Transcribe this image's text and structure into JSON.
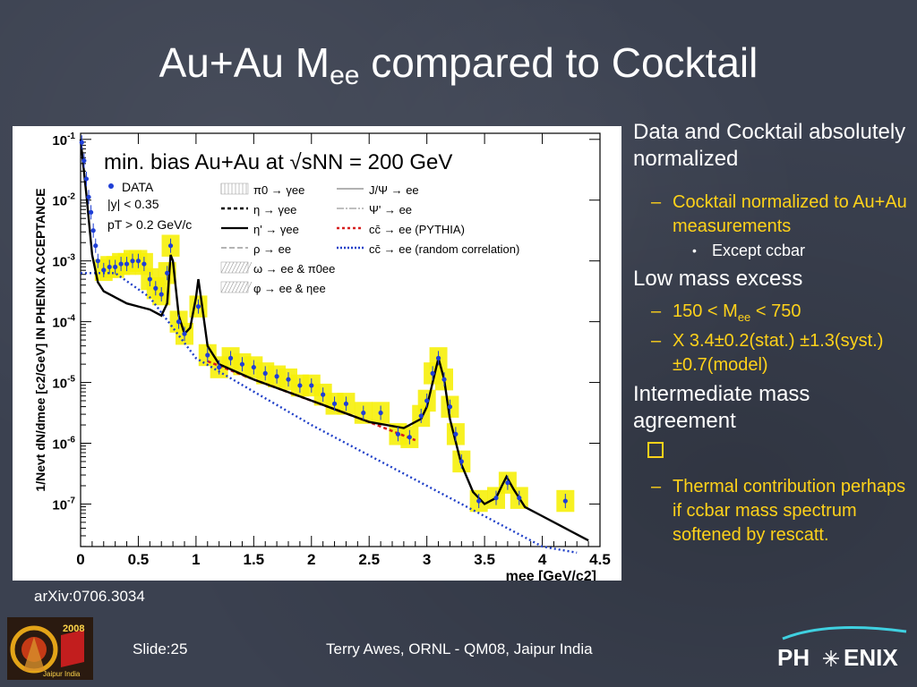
{
  "slide": {
    "title_main": "Au+Au M",
    "title_sub": "ee",
    "title_rest": " compared to Cocktail",
    "arxiv": "arXiv:0706.3034",
    "slide_label": "Slide:25",
    "author": "Terry Awes, ORNL - QM08, Jaipur India",
    "logo_right_text_a": "PH",
    "logo_right_text_b": "ENIX",
    "logo_left_year": "2008",
    "logo_left_text": "Jaipur India"
  },
  "notes": {
    "n1": "Data and Cocktail absolutely normalized",
    "n1a": "Cocktail normalized to Au+Au measurements",
    "n1a1": "Except ccbar",
    "n2": "Low mass excess",
    "n2a_pre": "150 < M",
    "n2a_sub": "ee",
    "n2a_post": " < 750",
    "n2b": "X 3.4±0.2(stat.) ±1.3(syst.)±0.7(model)",
    "n3": "Intermediate mass agreement",
    "n3b": "Thermal contribution perhaps if ccbar mass spectrum softened by rescatt."
  },
  "chart_data": {
    "type": "line",
    "title": "min. bias Au+Au at √sNN = 200 GeV",
    "xlabel": "mee [GeV/c2]",
    "ylabel": "1/Nevt dN/dmee [c2/GeV] IN PHENIX ACCEPTANCE",
    "xlim": [
      0,
      4.5
    ],
    "ylim_log10": [
      -7.7,
      -0.9
    ],
    "yscale": "log",
    "x_ticks": [
      "0",
      "0.5",
      "1",
      "1.5",
      "2",
      "2.5",
      "3",
      "3.5",
      "4",
      "4.5"
    ],
    "y_ticks": [
      {
        "base": "10",
        "exp": "-1",
        "log10": -1
      },
      {
        "base": "10",
        "exp": "-2",
        "log10": -2
      },
      {
        "base": "10",
        "exp": "-3",
        "log10": -3
      },
      {
        "base": "10",
        "exp": "-4",
        "log10": -4
      },
      {
        "base": "10",
        "exp": "-5",
        "log10": -5
      },
      {
        "base": "10",
        "exp": "-6",
        "log10": -6
      },
      {
        "base": "10",
        "exp": "-7",
        "log10": -7
      }
    ],
    "legend_data": {
      "label": "DATA",
      "cut1": "|y| < 0.35",
      "cut2": "pT > 0.2 GeV/c"
    },
    "legend_entries": [
      {
        "label": "π0 → γee",
        "col": 0
      },
      {
        "label": "η → γee",
        "col": 0
      },
      {
        "label": "η' → γee",
        "col": 0
      },
      {
        "label": "ρ → ee",
        "col": 0
      },
      {
        "label": "ω → ee & π0ee",
        "col": 0
      },
      {
        "label": "φ → ee & ηee",
        "col": 0
      },
      {
        "label": "J/Ψ → ee",
        "col": 1
      },
      {
        "label": "Ψ' → ee",
        "col": 1
      },
      {
        "label": "cc̄ → ee (PYTHIA)",
        "col": 1
      },
      {
        "label": "cc̄ → ee (random correlation)",
        "col": 1
      }
    ],
    "series": [
      {
        "name": "DATA",
        "color": "#1f3fd6",
        "x": [
          0.01,
          0.03,
          0.05,
          0.07,
          0.09,
          0.11,
          0.13,
          0.15,
          0.2,
          0.25,
          0.3,
          0.35,
          0.4,
          0.45,
          0.5,
          0.55,
          0.6,
          0.65,
          0.7,
          0.75,
          0.78,
          0.85,
          0.9,
          1.02,
          1.1,
          1.2,
          1.3,
          1.4,
          1.5,
          1.6,
          1.7,
          1.8,
          1.9,
          2.0,
          2.1,
          2.2,
          2.3,
          2.45,
          2.6,
          2.75,
          2.85,
          2.95,
          3.0,
          3.05,
          3.1,
          3.15,
          3.2,
          3.25,
          3.3,
          3.45,
          3.6,
          3.7,
          3.8,
          4.2
        ],
        "y": [
          -1.05,
          -1.35,
          -1.65,
          -1.95,
          -2.2,
          -2.5,
          -2.75,
          -3.0,
          -3.15,
          -3.1,
          -3.1,
          -3.05,
          -3.05,
          -3.0,
          -3.0,
          -3.05,
          -3.3,
          -3.45,
          -3.55,
          -3.2,
          -2.75,
          -4.0,
          -4.2,
          -3.75,
          -4.55,
          -4.75,
          -4.6,
          -4.7,
          -4.75,
          -4.85,
          -4.9,
          -4.95,
          -5.05,
          -5.05,
          -5.2,
          -5.35,
          -5.35,
          -5.5,
          -5.5,
          -5.85,
          -5.9,
          -5.55,
          -5.3,
          -4.85,
          -4.6,
          -4.95,
          -5.4,
          -5.85,
          -6.3,
          -6.95,
          -6.9,
          -6.65,
          -6.9,
          -6.95
        ]
      },
      {
        "name": "total cocktail",
        "color": "#000000",
        "x": [
          0.0,
          0.05,
          0.1,
          0.15,
          0.2,
          0.3,
          0.4,
          0.5,
          0.6,
          0.7,
          0.75,
          0.78,
          0.8,
          0.85,
          0.9,
          0.95,
          1.0,
          1.02,
          1.05,
          1.1,
          1.2,
          1.5,
          2.0,
          2.5,
          2.8,
          2.95,
          3.0,
          3.05,
          3.1,
          3.15,
          3.2,
          3.3,
          3.4,
          3.5,
          3.6,
          3.65,
          3.69,
          3.75,
          3.85,
          4.0,
          4.2,
          4.4
        ],
        "y": [
          -1.0,
          -1.9,
          -2.9,
          -3.35,
          -3.5,
          -3.6,
          -3.7,
          -3.75,
          -3.8,
          -3.9,
          -3.7,
          -2.9,
          -3.0,
          -3.9,
          -4.2,
          -4.1,
          -3.6,
          -3.3,
          -3.7,
          -4.4,
          -4.7,
          -4.95,
          -5.3,
          -5.65,
          -5.75,
          -5.6,
          -5.4,
          -5.0,
          -4.6,
          -4.95,
          -5.6,
          -6.35,
          -6.8,
          -7.0,
          -6.9,
          -6.7,
          -6.55,
          -6.75,
          -7.05,
          -7.2,
          -7.4,
          -7.6
        ]
      },
      {
        "name": "cc̄ → ee (PYTHIA)",
        "color": "#d62020",
        "x": [
          1.1,
          1.5,
          2.0,
          2.5,
          2.9
        ],
        "y": [
          -4.65,
          -4.95,
          -5.3,
          -5.65,
          -5.95
        ]
      },
      {
        "name": "cc̄ → ee (random correlation)",
        "color": "#2040c8",
        "x": [
          0.0,
          0.3,
          0.6,
          1.0,
          1.5,
          2.0,
          2.5,
          3.0,
          3.5,
          4.0,
          4.3
        ],
        "y": [
          -3.2,
          -3.2,
          -3.6,
          -4.6,
          -5.15,
          -5.7,
          -6.2,
          -6.7,
          -7.2,
          -7.7,
          -7.8
        ]
      }
    ],
    "grid": false,
    "legend_position": "top"
  }
}
